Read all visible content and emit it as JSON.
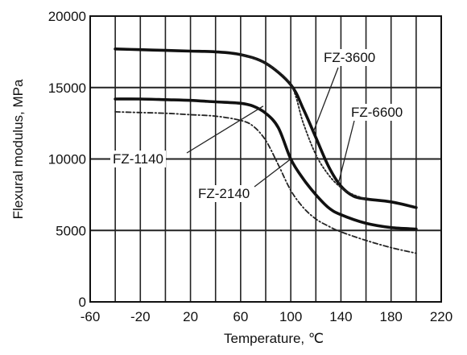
{
  "chart_data": {
    "type": "line",
    "xlabel": "Temperature, ℃",
    "ylabel": "Flexural modulus, MPa",
    "xlim": [
      -60,
      220
    ],
    "ylim": [
      0,
      20000
    ],
    "x_ticks": [
      -60,
      -20,
      20,
      60,
      100,
      140,
      180,
      220
    ],
    "x_tick_labels": [
      "-60",
      "-20",
      "20",
      "60",
      "100",
      "140",
      "180",
      "220"
    ],
    "y_ticks": [
      0,
      5000,
      10000,
      15000,
      20000
    ],
    "y_tick_labels": [
      "0",
      "5000",
      "10000",
      "15000",
      "20000"
    ],
    "x_grid": [
      -40,
      -20,
      0,
      20,
      40,
      60,
      80,
      100,
      120,
      140,
      160,
      180,
      200
    ],
    "y_grid": [
      5000,
      10000,
      15000
    ],
    "grid": true,
    "series": [
      {
        "name": "FZ-3600",
        "style": "solid-thick",
        "x": [
          -40,
          -20,
          0,
          20,
          40,
          60,
          80,
          100,
          110,
          120,
          130,
          140,
          150,
          160,
          180,
          200
        ],
        "y": [
          17700,
          17650,
          17600,
          17550,
          17500,
          17300,
          16700,
          15200,
          13500,
          11500,
          9500,
          8100,
          7400,
          7200,
          7000,
          6600
        ]
      },
      {
        "name": "FZ-6600",
        "style": "dotted",
        "x": [
          60,
          80,
          100,
          110,
          120,
          130,
          140,
          150,
          160
        ],
        "y": [
          17300,
          16700,
          15200,
          12500,
          10300,
          8900,
          8000,
          7500,
          7200
        ]
      },
      {
        "name": "FZ-2140",
        "style": "solid-thick",
        "x": [
          -40,
          -20,
          0,
          20,
          40,
          60,
          70,
          80,
          90,
          100,
          110,
          120,
          130,
          140,
          160,
          180,
          200
        ],
        "y": [
          14200,
          14200,
          14150,
          14100,
          14000,
          13900,
          13700,
          13200,
          12200,
          10000,
          8600,
          7500,
          6600,
          6100,
          5500,
          5200,
          5100
        ]
      },
      {
        "name": "FZ-1140",
        "style": "dash-dot",
        "x": [
          -40,
          -20,
          0,
          20,
          40,
          60,
          70,
          80,
          90,
          100,
          110,
          120,
          130,
          140,
          160,
          180,
          200
        ],
        "y": [
          13300,
          13250,
          13200,
          13100,
          13000,
          12700,
          12300,
          11300,
          9600,
          7800,
          6600,
          5800,
          5300,
          4900,
          4300,
          3800,
          3400
        ]
      }
    ],
    "annotations": [
      {
        "text": "FZ-3600",
        "series": "FZ-3600"
      },
      {
        "text": "FZ-6600",
        "series": "FZ-6600"
      },
      {
        "text": "FZ-1140",
        "series": "FZ-1140"
      },
      {
        "text": "FZ-2140",
        "series": "FZ-2140"
      }
    ]
  }
}
